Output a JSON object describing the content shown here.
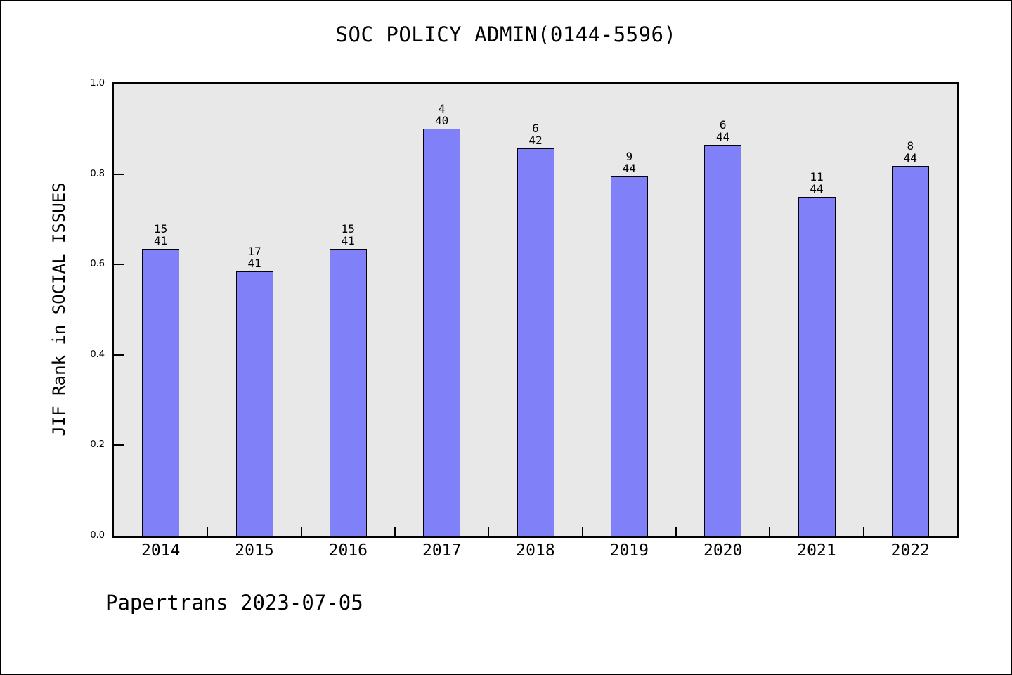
{
  "footer": {
    "text": "Papertrans 2023-07-05"
  },
  "chart_data": {
    "type": "bar",
    "title": "SOC POLICY ADMIN(0144-5596)",
    "xlabel": "",
    "ylabel": "JIF Rank in SOCIAL ISSUES",
    "ylim": [
      0.0,
      1.0
    ],
    "yticks": [
      0.0,
      0.2,
      0.4,
      0.6,
      0.8,
      1.0
    ],
    "ytick_labels": [
      "0.0",
      "0.2",
      "0.4",
      "0.6",
      "0.8",
      "1.0"
    ],
    "grid": false,
    "legend_position": "none",
    "categories": [
      "2014",
      "2015",
      "2016",
      "2017",
      "2018",
      "2019",
      "2020",
      "2021",
      "2022"
    ],
    "series": [
      {
        "name": "JIF Rank in SOCIAL ISSUES",
        "values": [
          0.634,
          0.585,
          0.634,
          0.9,
          0.857,
          0.795,
          0.864,
          0.75,
          0.818
        ]
      }
    ],
    "bar_labels": [
      {
        "rank": "15",
        "total": "41"
      },
      {
        "rank": "17",
        "total": "41"
      },
      {
        "rank": "15",
        "total": "41"
      },
      {
        "rank": "4",
        "total": "40"
      },
      {
        "rank": "6",
        "total": "42"
      },
      {
        "rank": "9",
        "total": "44"
      },
      {
        "rank": "6",
        "total": "44"
      },
      {
        "rank": "11",
        "total": "44"
      },
      {
        "rank": "8",
        "total": "44"
      }
    ],
    "bar_color": "#8080f8",
    "bar_border_color": "#000000",
    "plot_background": "#e8e8e8",
    "page_background": "#ffffff"
  }
}
